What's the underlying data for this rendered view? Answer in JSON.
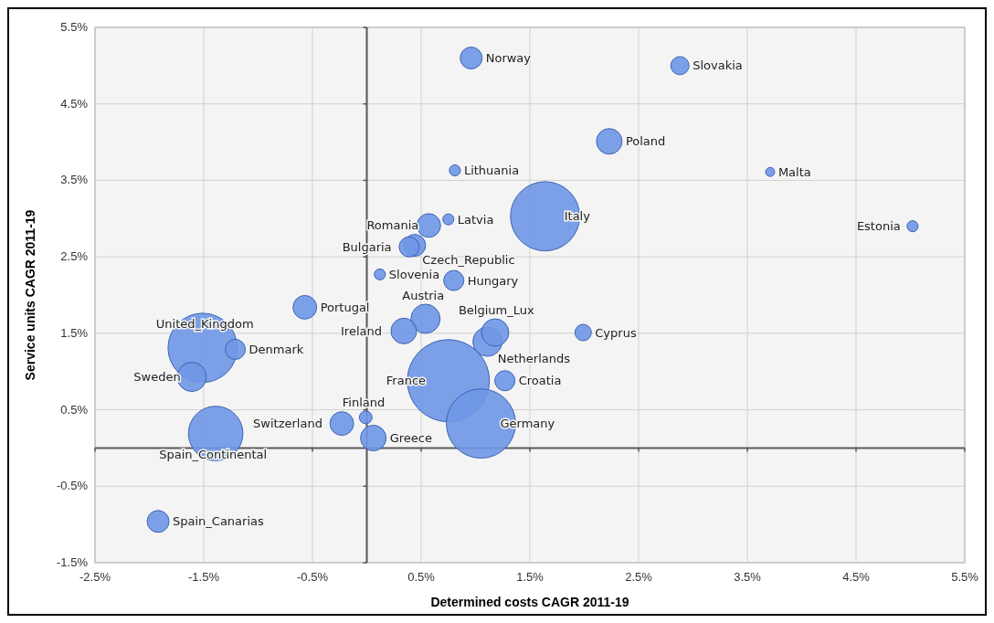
{
  "chart_data": {
    "type": "bubble",
    "xlabel": "Determined costs CAGR 2011-19",
    "ylabel": "Service units CAGR 2011-19",
    "xlim": [
      -2.5,
      5.5
    ],
    "ylim": [
      -1.5,
      5.5
    ],
    "xticks": [
      {
        "value": -2.5,
        "label": "-2.5%"
      },
      {
        "value": -1.5,
        "label": "-1.5%"
      },
      {
        "value": -0.5,
        "label": "-0.5%"
      },
      {
        "value": 0.5,
        "label": "0.5%"
      },
      {
        "value": 1.5,
        "label": "1.5%"
      },
      {
        "value": 2.5,
        "label": "2.5%"
      },
      {
        "value": 3.5,
        "label": "3.5%"
      },
      {
        "value": 4.5,
        "label": "4.5%"
      },
      {
        "value": 5.5,
        "label": "5.5%"
      }
    ],
    "yticks": [
      {
        "value": -1.5,
        "label": "-1.5%"
      },
      {
        "value": -0.5,
        "label": "-0.5%"
      },
      {
        "value": 0.5,
        "label": "0.5%"
      },
      {
        "value": 1.5,
        "label": "1.5%"
      },
      {
        "value": 2.5,
        "label": "2.5%"
      },
      {
        "value": 3.5,
        "label": "3.5%"
      },
      {
        "value": 4.5,
        "label": "4.5%"
      },
      {
        "value": 5.5,
        "label": "5.5%"
      }
    ],
    "grid": true,
    "ref_lines": [
      {
        "axis": "x",
        "value": 0,
        "color": "#555555"
      },
      {
        "axis": "y",
        "value": 0,
        "color": "#5a5a5a"
      }
    ],
    "series": [
      {
        "color": "#6f97e6",
        "x": [
          0.96,
          2.88,
          2.23,
          0.81,
          3.71,
          5.02,
          1.64,
          0.75,
          0.57,
          0.39,
          0.44,
          0.12,
          0.8,
          -0.57,
          0.54,
          1.18,
          1.99,
          0.34,
          -1.51,
          -1.21,
          1.11,
          0.75,
          1.27,
          -1.61,
          -0.01,
          -0.23,
          1.05,
          -1.39,
          0.06,
          -1.92
        ],
        "values": [
          5.1,
          5.0,
          4.01,
          3.63,
          3.61,
          2.9,
          3.03,
          2.99,
          2.91,
          2.63,
          2.65,
          2.27,
          2.19,
          1.84,
          1.69,
          1.51,
          1.51,
          1.53,
          1.31,
          1.29,
          1.39,
          0.88,
          0.88,
          0.93,
          0.4,
          0.32,
          0.32,
          0.19,
          0.13,
          -0.96
        ],
        "sizes": [
          0.071,
          0.049,
          0.097,
          0.018,
          0.012,
          0.018,
          0.71,
          0.018,
          0.083,
          0.06,
          0.071,
          0.018,
          0.06,
          0.083,
          0.126,
          0.111,
          0.04,
          0.097,
          0.71,
          0.06,
          0.126,
          1,
          0.06,
          0.126,
          0.024,
          0.083,
          0.71,
          0.44,
          0.097,
          0.071
        ]
      }
    ],
    "annotations": [
      {
        "text": "Norway",
        "x": 0.96,
        "y": 5.1
      },
      {
        "text": "Slovakia",
        "x": 2.88,
        "y": 5.0
      },
      {
        "text": "Poland",
        "x": 2.23,
        "y": 4.01
      },
      {
        "text": "Lithuania",
        "x": 0.81,
        "y": 3.63
      },
      {
        "text": "Malta",
        "x": 3.71,
        "y": 3.61
      },
      {
        "text": "Estonia",
        "x": 5.02,
        "y": 2.9
      },
      {
        "text": "Italy",
        "x": 1.64,
        "y": 3.03
      },
      {
        "text": "Latvia",
        "x": 0.75,
        "y": 2.99
      },
      {
        "text": "Romania",
        "x": 0.57,
        "y": 2.91
      },
      {
        "text": "Bulgaria",
        "x": 0.39,
        "y": 2.63
      },
      {
        "text": "Czech_Republic",
        "x": 0.44,
        "y": 2.65
      },
      {
        "text": "Slovenia",
        "x": 0.12,
        "y": 2.27
      },
      {
        "text": "Hungary",
        "x": 0.8,
        "y": 2.19
      },
      {
        "text": "Portugal",
        "x": -0.57,
        "y": 1.84
      },
      {
        "text": "Austria",
        "x": 0.54,
        "y": 1.69
      },
      {
        "text": "Belgium_Lux",
        "x": 1.18,
        "y": 1.51
      },
      {
        "text": "Cyprus",
        "x": 1.99,
        "y": 1.51
      },
      {
        "text": "Ireland",
        "x": 0.34,
        "y": 1.53
      },
      {
        "text": "United_Kingdom",
        "x": -1.51,
        "y": 1.31
      },
      {
        "text": "Denmark",
        "x": -1.21,
        "y": 1.29
      },
      {
        "text": "Netherlands",
        "x": 1.11,
        "y": 1.39
      },
      {
        "text": "France",
        "x": 0.75,
        "y": 0.88
      },
      {
        "text": "Croatia",
        "x": 1.27,
        "y": 0.88
      },
      {
        "text": "Sweden",
        "x": -1.61,
        "y": 0.93
      },
      {
        "text": "Finland",
        "x": -0.01,
        "y": 0.4
      },
      {
        "text": "Switzerland",
        "x": -0.23,
        "y": 0.32
      },
      {
        "text": "Germany",
        "x": 1.05,
        "y": 0.32
      },
      {
        "text": "Spain_Continental",
        "x": -1.39,
        "y": 0.19
      },
      {
        "text": "Greece",
        "x": 0.06,
        "y": 0.13
      },
      {
        "text": "Spain_Canarias",
        "x": -1.92,
        "y": -0.96
      }
    ]
  }
}
